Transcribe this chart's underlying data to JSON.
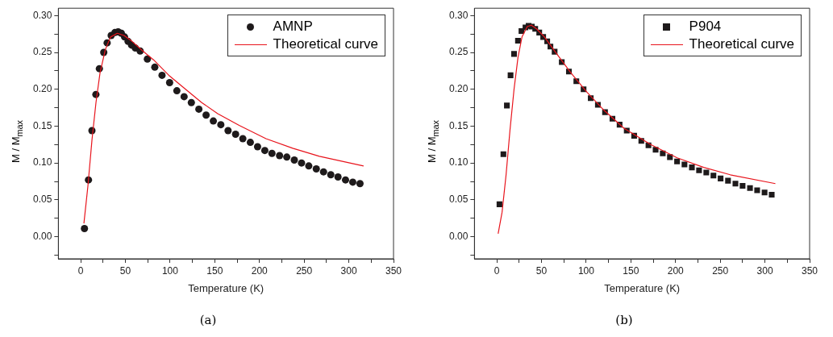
{
  "chart_data": [
    {
      "type": "scatter",
      "xlabel": "Temperature (K)",
      "ylabel": "M / M$_{max}$",
      "annotations": [
        "(a)"
      ],
      "legend": "top right",
      "grid": false,
      "xlim": [
        -25,
        350
      ],
      "xticks": [
        0,
        {
          "value": 25,
          "label": null
        },
        50,
        {
          "value": 75,
          "label": null
        },
        100,
        {
          "value": 125,
          "label": null
        },
        150,
        {
          "value": 175,
          "label": null
        },
        200,
        {
          "value": 225,
          "label": null
        },
        250,
        {
          "value": 275,
          "label": null
        },
        300,
        {
          "value": 325,
          "label": null
        },
        350
      ],
      "ylim": [
        -0.03,
        0.31
      ],
      "yticks": [
        {
          "value": -0.025,
          "label": null
        },
        {
          "value": 0,
          "label": "0.00"
        },
        {
          "value": 0.025,
          "label": null
        },
        {
          "value": 0.05,
          "label": "0.05"
        },
        {
          "value": 0.075,
          "label": null
        },
        {
          "value": 0.1,
          "label": "0.10"
        },
        {
          "value": 0.125,
          "label": null
        },
        {
          "value": 0.15,
          "label": "0.15"
        },
        {
          "value": 0.175,
          "label": null
        },
        {
          "value": 0.2,
          "label": "0.20"
        },
        {
          "value": 0.225,
          "label": null
        },
        {
          "value": 0.25,
          "label": "0.25"
        },
        {
          "value": 0.275,
          "label": null
        },
        {
          "value": 0.3,
          "label": "0.30"
        }
      ],
      "series": [
        {
          "name": "AMNP",
          "type": "scatter",
          "marker": "circle",
          "color": "#1e1a1b",
          "x": [
            4.2,
            8.7,
            12.6,
            17,
            20.9,
            25.8,
            29.6,
            34.1,
            38.3,
            41.9,
            45.5,
            49.1,
            53,
            56.9,
            61.1,
            66.5,
            74.6,
            82.9,
            91,
            99.5,
            107.6,
            115.7,
            123.8,
            132.2,
            140.3,
            148.4,
            156.8,
            164.9,
            173.3,
            181.4,
            189.8,
            197.9,
            206,
            214,
            222.5,
            230.6,
            239,
            247.1,
            255.2,
            263.6,
            271.7,
            279.8,
            287.9,
            296.3,
            304.4,
            312.5
          ],
          "values": [
            0.011,
            0.077,
            0.144,
            0.193,
            0.228,
            0.25,
            0.263,
            0.273,
            0.277,
            0.278,
            0.276,
            0.271,
            0.265,
            0.26,
            0.256,
            0.252,
            0.241,
            0.23,
            0.219,
            0.209,
            0.198,
            0.19,
            0.182,
            0.173,
            0.165,
            0.157,
            0.152,
            0.144,
            0.139,
            0.133,
            0.128,
            0.122,
            0.117,
            0.113,
            0.11,
            0.108,
            0.104,
            0.1,
            0.096,
            0.092,
            0.088,
            0.084,
            0.081,
            0.077,
            0.074,
            0.072
          ]
        },
        {
          "name": "Theoretical curve",
          "type": "line",
          "marker": "none",
          "line_style": "solid",
          "color": "#e8141c",
          "x": [
            3.6,
            8.1,
            12.6,
            17.1,
            21.6,
            27.6,
            33.5,
            41,
            48.5,
            57.5,
            69.5,
            81.5,
            99.5,
            117.4,
            135.4,
            153.3,
            177.3,
            207.3,
            237.2,
            267.1,
            316.5
          ],
          "values": [
            0.018,
            0.069,
            0.131,
            0.182,
            0.222,
            0.254,
            0.271,
            0.276,
            0.273,
            0.265,
            0.252,
            0.24,
            0.218,
            0.2,
            0.182,
            0.167,
            0.151,
            0.133,
            0.12,
            0.109,
            0.096
          ]
        }
      ]
    },
    {
      "type": "scatter",
      "xlabel": "Temperature (K)",
      "ylabel": "M / M$_{max}$",
      "annotations": [
        "(b)"
      ],
      "legend": "top right",
      "grid": false,
      "xlim": [
        -25,
        350
      ],
      "xticks": [
        0,
        {
          "value": 25,
          "label": null
        },
        50,
        {
          "value": 75,
          "label": null
        },
        100,
        {
          "value": 125,
          "label": null
        },
        150,
        {
          "value": 175,
          "label": null
        },
        200,
        {
          "value": 225,
          "label": null
        },
        250,
        {
          "value": 275,
          "label": null
        },
        300,
        {
          "value": 325,
          "label": null
        },
        350
      ],
      "ylim": [
        -0.03,
        0.31
      ],
      "yticks": [
        {
          "value": -0.025,
          "label": null
        },
        {
          "value": 0,
          "label": "0.00"
        },
        {
          "value": 0.025,
          "label": null
        },
        {
          "value": 0.05,
          "label": "0.05"
        },
        {
          "value": 0.075,
          "label": null
        },
        {
          "value": 0.1,
          "label": "0.10"
        },
        {
          "value": 0.125,
          "label": null
        },
        {
          "value": 0.15,
          "label": "0.15"
        },
        {
          "value": 0.175,
          "label": null
        },
        {
          "value": 0.2,
          "label": "0.20"
        },
        {
          "value": 0.225,
          "label": null
        },
        {
          "value": 0.25,
          "label": "0.25"
        },
        {
          "value": 0.275,
          "label": null
        },
        {
          "value": 0.3,
          "label": "0.30"
        }
      ],
      "series": [
        {
          "name": "P904",
          "type": "scatter",
          "marker": "square",
          "color": "#1e1a1b",
          "x": [
            3,
            7.4,
            11.3,
            15.4,
            19.3,
            23.7,
            27.6,
            32.1,
            35.6,
            39.2,
            43,
            47.5,
            51.9,
            56.4,
            60,
            64.7,
            72.7,
            80.7,
            89,
            97.1,
            105.1,
            113.1,
            121.1,
            129.4,
            137.4,
            145.4,
            153.7,
            161.7,
            169.7,
            177.7,
            185.7,
            193.7,
            201.7,
            210,
            218.3,
            226.3,
            234.4,
            242.4,
            250.4,
            258.7,
            267,
            275,
            283.3,
            291.3,
            299.6,
            307.6
          ],
          "values": [
            0.044,
            0.112,
            0.178,
            0.219,
            0.248,
            0.266,
            0.279,
            0.284,
            0.286,
            0.285,
            0.282,
            0.277,
            0.271,
            0.265,
            0.258,
            0.251,
            0.237,
            0.224,
            0.211,
            0.2,
            0.188,
            0.179,
            0.169,
            0.16,
            0.152,
            0.144,
            0.137,
            0.13,
            0.124,
            0.118,
            0.113,
            0.108,
            0.102,
            0.098,
            0.094,
            0.09,
            0.087,
            0.083,
            0.079,
            0.076,
            0.072,
            0.069,
            0.066,
            0.063,
            0.06,
            0.057
          ]
        },
        {
          "name": "Theoretical curve",
          "type": "line",
          "marker": "none",
          "line_style": "solid",
          "color": "#e8141c",
          "x": [
            1.5,
            5.9,
            10.4,
            14.8,
            19.3,
            23.7,
            28.2,
            34.1,
            38.6,
            44.5,
            53.4,
            65.3,
            83.1,
            100.9,
            118.7,
            142.5,
            172.2,
            201.8,
            231.5,
            261.2,
            311.7
          ],
          "values": [
            0.004,
            0.033,
            0.084,
            0.145,
            0.2,
            0.243,
            0.271,
            0.285,
            0.287,
            0.282,
            0.271,
            0.251,
            0.222,
            0.196,
            0.173,
            0.147,
            0.125,
            0.107,
            0.094,
            0.084,
            0.072
          ]
        }
      ]
    }
  ]
}
